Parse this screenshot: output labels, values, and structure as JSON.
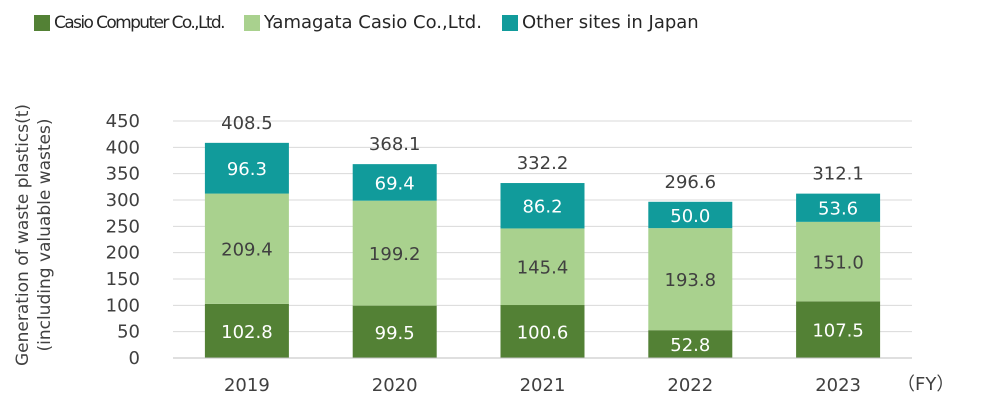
{
  "chart_data": {
    "type": "bar",
    "stacked": true,
    "categories": [
      "2019",
      "2020",
      "2021",
      "2022",
      "2023"
    ],
    "series": [
      {
        "name": "Casio Computer Co.,Ltd.",
        "color": "#538135",
        "values": [
          102.8,
          99.5,
          100.6,
          52.8,
          107.5
        ]
      },
      {
        "name": "Yamagata Casio Co.,Ltd.",
        "color": "#a9d18e",
        "values": [
          209.4,
          199.2,
          145.4,
          193.8,
          151.0
        ]
      },
      {
        "name": "Other sites in Japan",
        "color": "#119b9b",
        "values": [
          96.3,
          69.4,
          86.2,
          50.0,
          53.6
        ]
      }
    ],
    "totals": [
      408.5,
      368.1,
      332.2,
      296.6,
      312.1
    ],
    "ylabel_line1": "Generation of waste plastics(t)",
    "ylabel_line2": "(including valuable wastes)",
    "x_unit": "（FY）",
    "ylim": [
      0,
      450
    ],
    "yticks": [
      0,
      50,
      100,
      150,
      200,
      250,
      300,
      350,
      400,
      450
    ],
    "grid": true,
    "legend_position": "top-left"
  }
}
